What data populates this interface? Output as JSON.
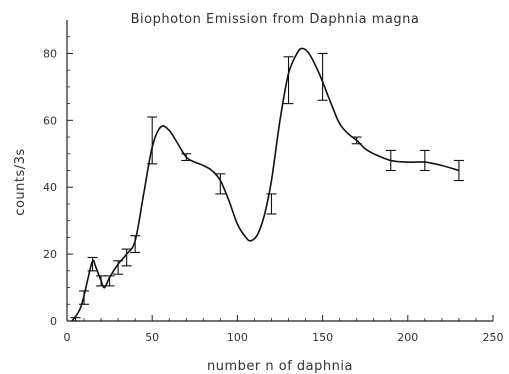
{
  "chart_data": {
    "type": "line",
    "title": "Biophoton Emission from Daphnia magna",
    "xlabel": "number n of daphnia",
    "ylabel": "counts/3s",
    "xlim": [
      0,
      250
    ],
    "ylim": [
      0,
      90
    ],
    "x_ticks": [
      0,
      50,
      100,
      150,
      200,
      250
    ],
    "x_tick_labels": [
      "0",
      "50",
      "100",
      "150",
      "200",
      "250"
    ],
    "y_ticks": [
      0,
      20,
      40,
      60,
      80
    ],
    "y_tick_labels": [
      "0",
      "20",
      "40",
      "60",
      "80"
    ],
    "grid": false,
    "legend": "none",
    "series": [
      {
        "points": [
          {
            "x": 5,
            "y": 0.5,
            "err": 0.5
          },
          {
            "x": 10,
            "y": 7,
            "err": 2
          },
          {
            "x": 15,
            "y": 17,
            "err": 2
          },
          {
            "x": 20,
            "y": 12,
            "err": 1.5
          },
          {
            "x": 25,
            "y": 12,
            "err": 1.5
          },
          {
            "x": 30,
            "y": 16,
            "err": 2
          },
          {
            "x": 35,
            "y": 19,
            "err": 2.5
          },
          {
            "x": 40,
            "y": 23,
            "err": 2.5
          },
          {
            "x": 50,
            "y": 54,
            "err": 7
          },
          {
            "x": 70,
            "y": 49,
            "err": 1
          },
          {
            "x": 90,
            "y": 41,
            "err": 3
          },
          {
            "x": 120,
            "y": 35,
            "err": 3
          },
          {
            "x": 130,
            "y": 72,
            "err": 7
          },
          {
            "x": 150,
            "y": 73,
            "err": 7
          },
          {
            "x": 170,
            "y": 54,
            "err": 1
          },
          {
            "x": 190,
            "y": 48,
            "err": 3
          },
          {
            "x": 210,
            "y": 48,
            "err": 3
          },
          {
            "x": 230,
            "y": 45,
            "err": 3
          }
        ],
        "curve": [
          [
            3,
            0
          ],
          [
            8,
            4
          ],
          [
            12,
            12
          ],
          [
            15,
            18
          ],
          [
            17,
            16
          ],
          [
            20,
            12
          ],
          [
            22,
            10
          ],
          [
            25,
            13
          ],
          [
            30,
            17
          ],
          [
            35,
            20
          ],
          [
            40,
            24
          ],
          [
            45,
            38
          ],
          [
            50,
            52
          ],
          [
            55,
            58
          ],
          [
            60,
            57
          ],
          [
            65,
            53
          ],
          [
            70,
            49
          ],
          [
            75,
            47.5
          ],
          [
            80,
            46.5
          ],
          [
            85,
            45
          ],
          [
            90,
            42
          ],
          [
            95,
            36
          ],
          [
            100,
            29
          ],
          [
            105,
            25
          ],
          [
            108,
            24
          ],
          [
            112,
            26
          ],
          [
            116,
            32
          ],
          [
            120,
            42
          ],
          [
            125,
            60
          ],
          [
            130,
            74
          ],
          [
            135,
            80
          ],
          [
            138,
            81.5
          ],
          [
            142,
            80
          ],
          [
            148,
            74
          ],
          [
            155,
            65
          ],
          [
            160,
            59
          ],
          [
            165,
            56
          ],
          [
            170,
            54
          ],
          [
            175,
            51.5
          ],
          [
            180,
            50
          ],
          [
            190,
            48
          ],
          [
            200,
            47.5
          ],
          [
            210,
            47.5
          ],
          [
            220,
            46.5
          ],
          [
            230,
            45
          ]
        ]
      }
    ]
  }
}
